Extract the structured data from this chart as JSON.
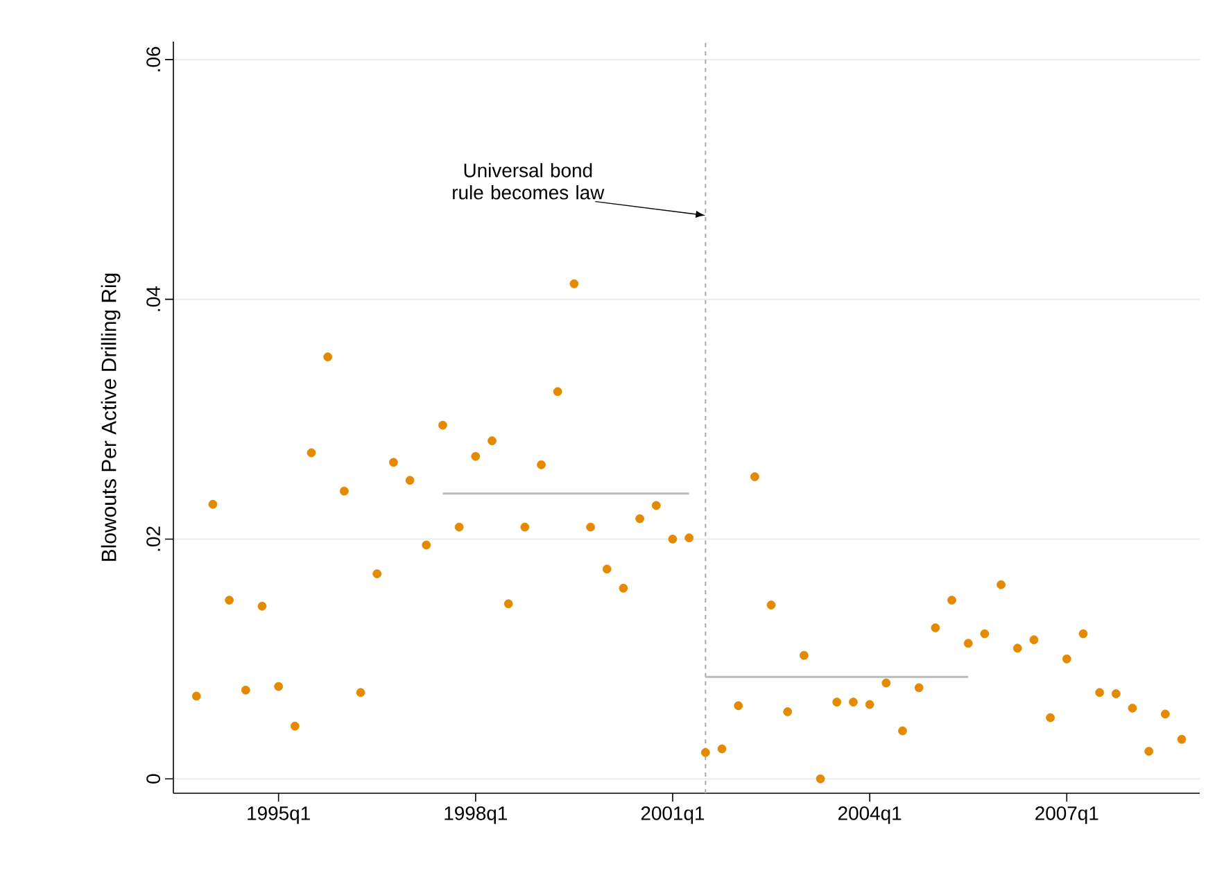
{
  "chart_data": {
    "type": "scatter",
    "ylabel": "Blowouts Per Active Drilling Rig",
    "xlim": [
      "1993-05-25",
      "2009-01-10"
    ],
    "ylim": [
      -0.0012,
      0.0615
    ],
    "xticks": [
      {
        "value": "1995-01",
        "label": "1995q1"
      },
      {
        "value": "1998-01",
        "label": "1998q1"
      },
      {
        "value": "2001-01",
        "label": "2001q1"
      },
      {
        "value": "2004-01",
        "label": "2004q1"
      },
      {
        "value": "2007-01",
        "label": "2007q1"
      }
    ],
    "yticks": [
      0,
      {
        "value": 0.02,
        "label": ".02"
      },
      {
        "value": 0.04,
        "label": ".04"
      },
      {
        "value": 0.06,
        "label": ".06"
      }
    ],
    "grid": "y",
    "marker": "circle",
    "series": [
      {
        "color": "#e38a00",
        "x": [
          "1993-10",
          "1994-01",
          "1994-04",
          "1994-07",
          "1994-10",
          "1995-01",
          "1995-04",
          "1995-07",
          "1995-10",
          "1996-01",
          "1996-04",
          "1996-07",
          "1996-10",
          "1997-01",
          "1997-04",
          "1997-07",
          "1997-10",
          "1998-01",
          "1998-04",
          "1998-07",
          "1998-10",
          "1999-01",
          "1999-04",
          "1999-07",
          "1999-10",
          "2000-01",
          "2000-04",
          "2000-07",
          "2000-10",
          "2001-01",
          "2001-04",
          "2001-07",
          "2001-10",
          "2002-01",
          "2002-04",
          "2002-07",
          "2002-10",
          "2003-01",
          "2003-04",
          "2003-07",
          "2003-10",
          "2004-01",
          "2004-04",
          "2004-07",
          "2004-10",
          "2005-01",
          "2005-04",
          "2005-07",
          "2005-10",
          "2006-01",
          "2006-04",
          "2006-07",
          "2006-10",
          "2007-01",
          "2007-04",
          "2007-07",
          "2007-10",
          "2008-01",
          "2008-04",
          "2008-07",
          "2008-10"
        ],
        "values": [
          0.0069,
          0.0229,
          0.0149,
          0.0074,
          0.0144,
          0.0077,
          0.0044,
          0.0272,
          0.0352,
          0.024,
          0.0072,
          0.0171,
          0.0264,
          0.0249,
          0.0195,
          0.0295,
          0.021,
          0.0269,
          0.0282,
          0.0146,
          0.021,
          0.0262,
          0.0323,
          0.0413,
          0.021,
          0.0175,
          0.0159,
          0.0217,
          0.0228,
          0.02,
          0.0201,
          0.0022,
          0.0025,
          0.0061,
          0.0252,
          0.0145,
          0.0056,
          0.0103,
          0.0,
          0.0064,
          0.0064,
          0.0062,
          0.008,
          0.004,
          0.0076,
          0.0126,
          0.0149,
          0.0113,
          0.0121,
          0.0162,
          0.0109,
          0.0116,
          0.0051,
          0.01,
          0.0121,
          0.0072,
          0.0071,
          0.0059,
          0.0023,
          0.0054,
          0.0033
        ]
      },
      {
        "type": "line",
        "color": "#bbbbbb",
        "marker": "none",
        "x": [
          "1997-07",
          "2001-04"
        ],
        "values": [
          0.0238,
          0.0238
        ]
      },
      {
        "type": "line",
        "color": "#bbbbbb",
        "marker": "none",
        "x": [
          "2001-07",
          "2005-07"
        ],
        "values": [
          0.0085,
          0.0085
        ]
      }
    ],
    "ref_lines": [
      {
        "axis": "x",
        "value": "2001-07",
        "color": "#aaaaaa",
        "line_style": "dashed"
      }
    ],
    "annotations": [
      {
        "text": "Universal bond rule becomes law",
        "x": "2001-07",
        "y": 0.047
      }
    ]
  }
}
